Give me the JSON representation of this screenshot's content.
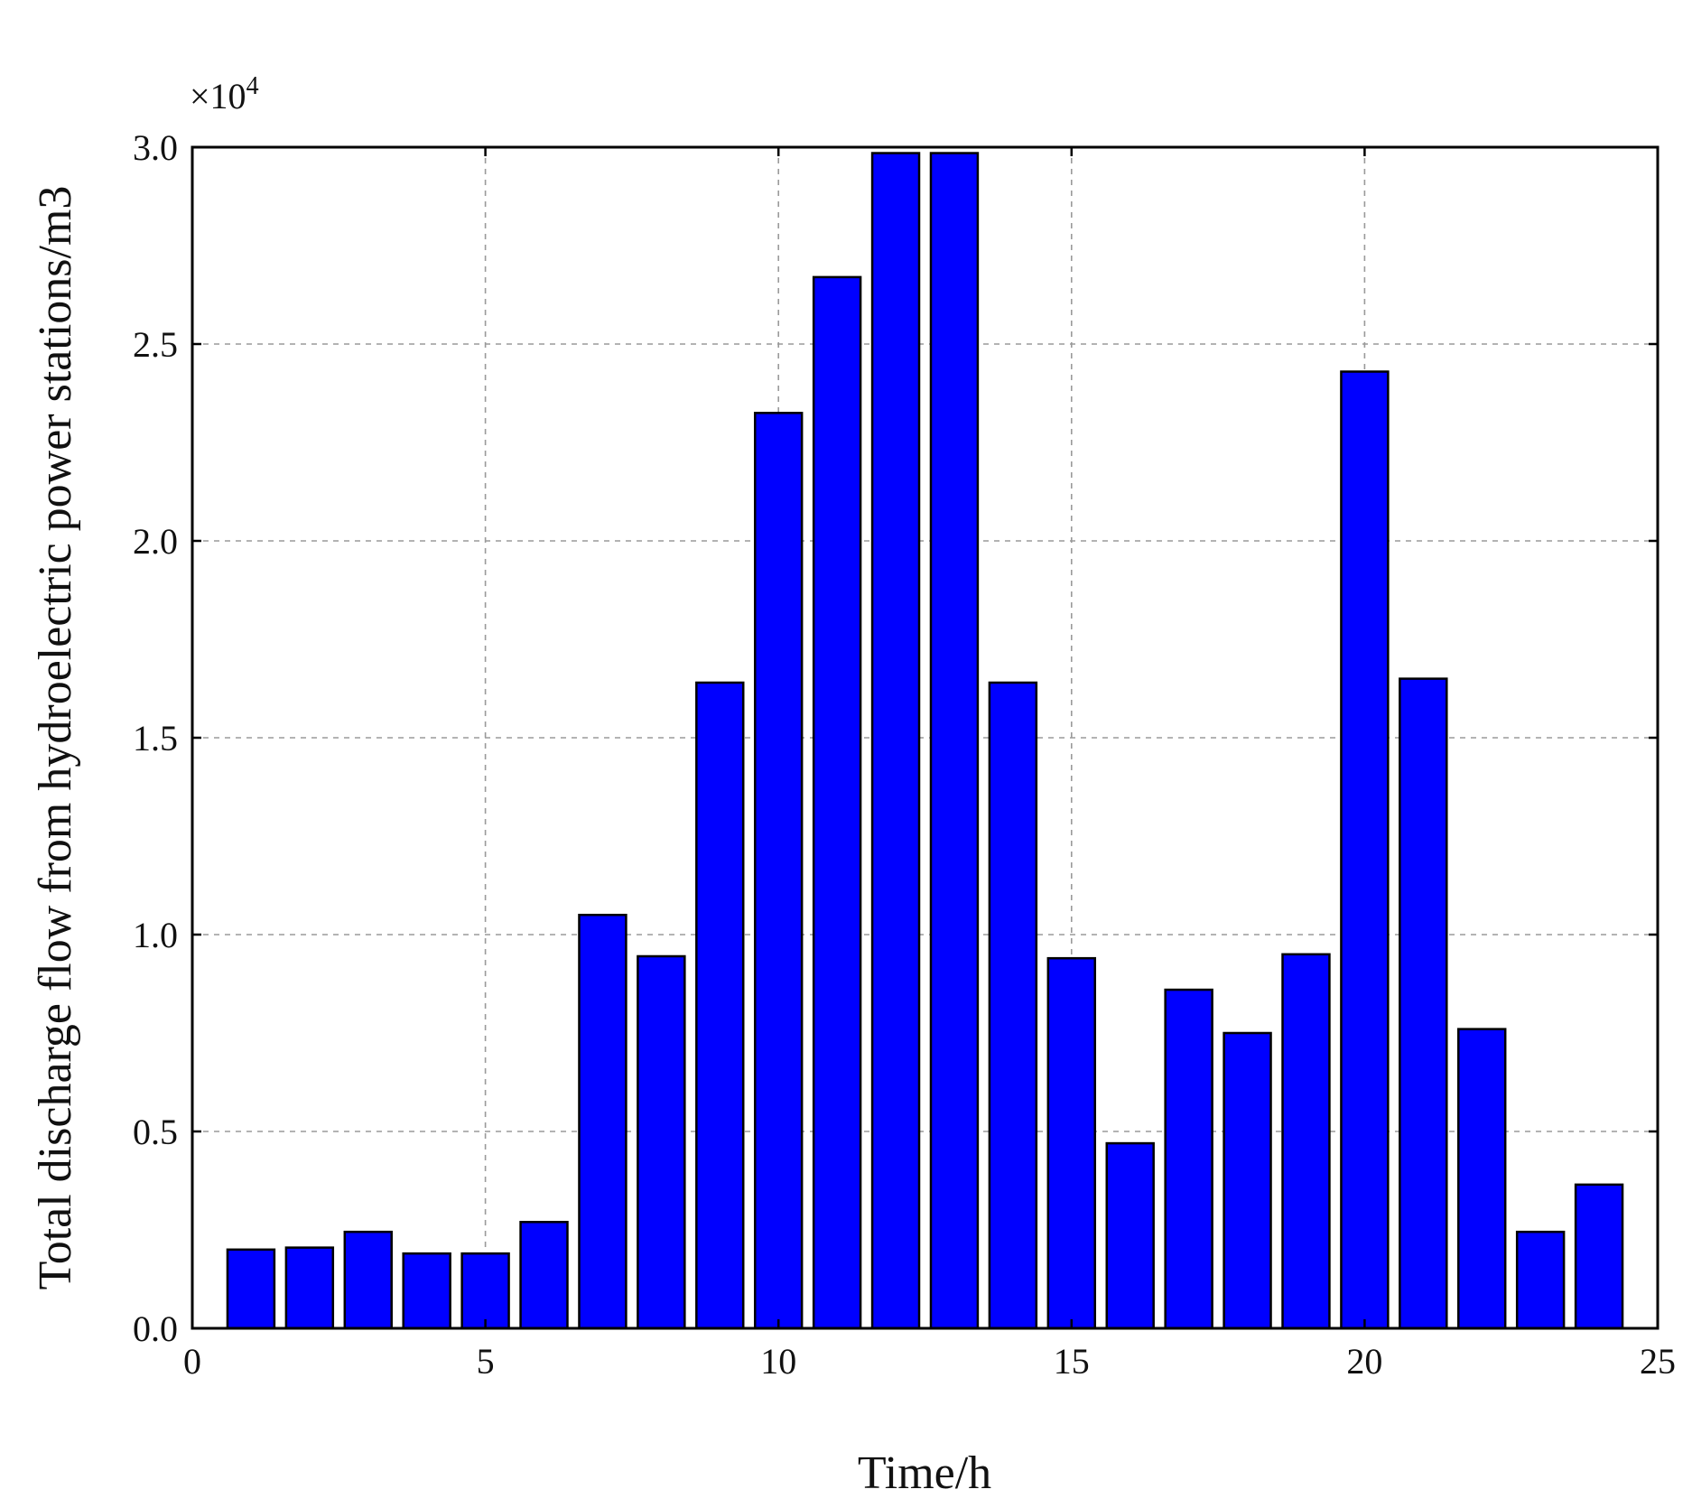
{
  "chart_data": {
    "type": "bar",
    "title": "",
    "xlabel": "Time/h",
    "ylabel": "Total discharge flow from hydroelectric power stations/m3",
    "y_multiplier_base": "×10",
    "y_multiplier_exp": "4",
    "xlim": [
      0,
      25
    ],
    "ylim": [
      0,
      3.0
    ],
    "x_ticks": [
      "0",
      "5",
      "10",
      "15",
      "20",
      "25"
    ],
    "y_ticks": [
      "0.0",
      "0.5",
      "1.0",
      "1.5",
      "2.0",
      "2.5",
      "3.0"
    ],
    "grid": true,
    "color": "#0000ff",
    "x": [
      1,
      2,
      3,
      4,
      5,
      6,
      7,
      8,
      9,
      10,
      11,
      12,
      13,
      14,
      15,
      16,
      17,
      18,
      19,
      20,
      21,
      22,
      23,
      24
    ],
    "values": [
      0.2,
      0.205,
      0.245,
      0.19,
      0.19,
      0.27,
      1.05,
      0.945,
      1.64,
      2.325,
      2.67,
      2.985,
      2.985,
      1.64,
      0.94,
      0.47,
      0.86,
      0.75,
      0.95,
      2.43,
      1.65,
      0.76,
      0.245,
      0.365
    ]
  }
}
